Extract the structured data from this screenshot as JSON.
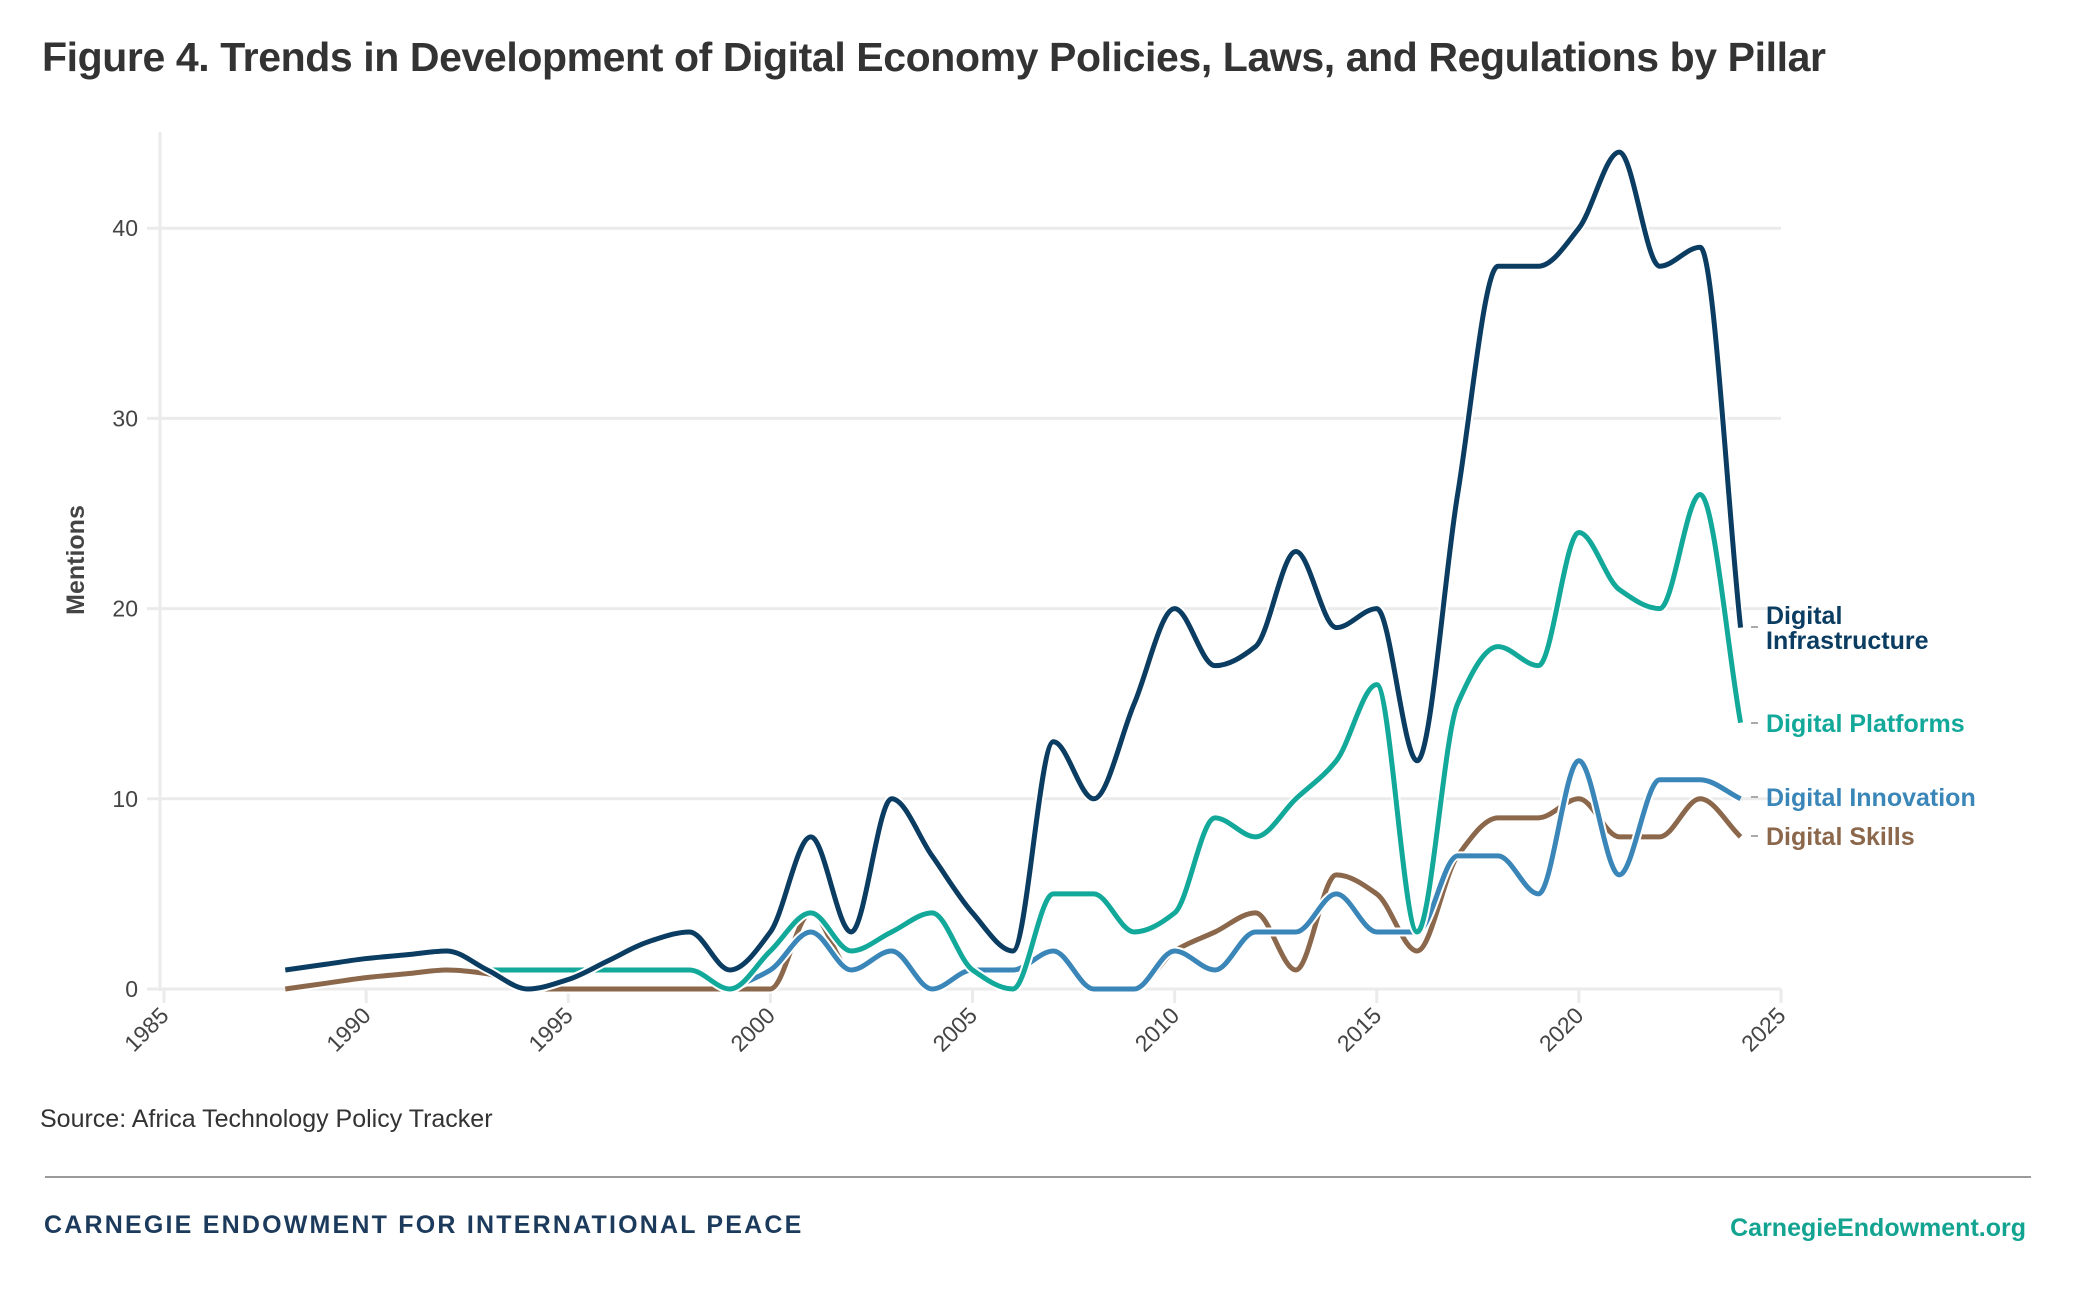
{
  "figure": {
    "title": "Figure 4. Trends in Development of Digital Economy Policies, Laws, and Regulations by Pillar",
    "source": "Source: Africa Technology Policy Tracker"
  },
  "footer": {
    "organization": "CARNEGIE ENDOWMENT FOR INTERNATIONAL PEACE",
    "url": "CarnegieEndowment.org"
  },
  "chart_data": {
    "type": "line",
    "title": "Figure 4. Trends in Development of Digital Economy Policies, Laws, and Regulations by Pillar",
    "xlabel": "",
    "ylabel": "Mentions",
    "xlim": [
      1985,
      2025
    ],
    "ylim": [
      0,
      45
    ],
    "x_ticks": [
      1985,
      1990,
      1995,
      2000,
      2005,
      2010,
      2015,
      2020,
      2025
    ],
    "y_ticks": [
      0,
      10,
      20,
      30,
      40
    ],
    "grid": "horizontal",
    "legend": "direct labels at line ends (right)",
    "x": [
      1988,
      1989,
      1990,
      1991,
      1992,
      1993,
      1994,
      1995,
      1996,
      1997,
      1998,
      1999,
      2000,
      2001,
      2002,
      2003,
      2004,
      2005,
      2006,
      2007,
      2008,
      2009,
      2010,
      2011,
      2012,
      2013,
      2014,
      2015,
      2016,
      2017,
      2018,
      2019,
      2020,
      2021,
      2022,
      2023,
      2024
    ],
    "series": [
      {
        "name": "Digital Infrastructure",
        "label_lines": [
          "Digital",
          "Infrastructure"
        ],
        "color": "#0b3c61",
        "values": [
          1,
          1.3,
          1.6,
          1.8,
          2,
          1,
          0,
          0.5,
          1.5,
          2.5,
          3,
          1,
          3,
          8,
          3,
          10,
          7,
          4,
          2,
          13,
          10,
          15,
          20,
          17,
          18,
          23,
          19,
          20,
          12,
          26,
          38,
          38,
          40,
          44,
          38,
          39,
          19
        ]
      },
      {
        "name": "Digital Platforms",
        "label_lines": [
          "Digital Platforms"
        ],
        "color": "#12a89a",
        "values": [
          null,
          null,
          null,
          null,
          null,
          1,
          1,
          1,
          1,
          1,
          1,
          0,
          2,
          4,
          2,
          3,
          4,
          1,
          0,
          5,
          5,
          3,
          4,
          9,
          8,
          10,
          12,
          16,
          3,
          15,
          18,
          17,
          24,
          21,
          20,
          26,
          14
        ]
      },
      {
        "name": "Digital Innovation",
        "label_lines": [
          "Digital Innovation"
        ],
        "color": "#3a86b8",
        "values": [
          null,
          null,
          null,
          null,
          null,
          null,
          null,
          null,
          null,
          null,
          null,
          0,
          1,
          3,
          1,
          2,
          0,
          1,
          1,
          2,
          0,
          0,
          2,
          1,
          3,
          3,
          5,
          3,
          3,
          7,
          7,
          5,
          12,
          6,
          11,
          11,
          10
        ]
      },
      {
        "name": "Digital Skills",
        "label_lines": [
          "Digital Skills"
        ],
        "color": "#8b684c",
        "values": [
          0,
          0.3,
          0.6,
          0.8,
          1,
          0.8,
          0,
          0,
          0,
          0,
          0,
          0,
          0,
          4,
          1,
          2,
          0,
          1,
          1,
          2,
          0,
          0,
          2,
          3,
          4,
          1,
          6,
          5,
          2,
          7,
          9,
          9,
          10,
          8,
          8,
          10,
          8
        ]
      }
    ]
  }
}
